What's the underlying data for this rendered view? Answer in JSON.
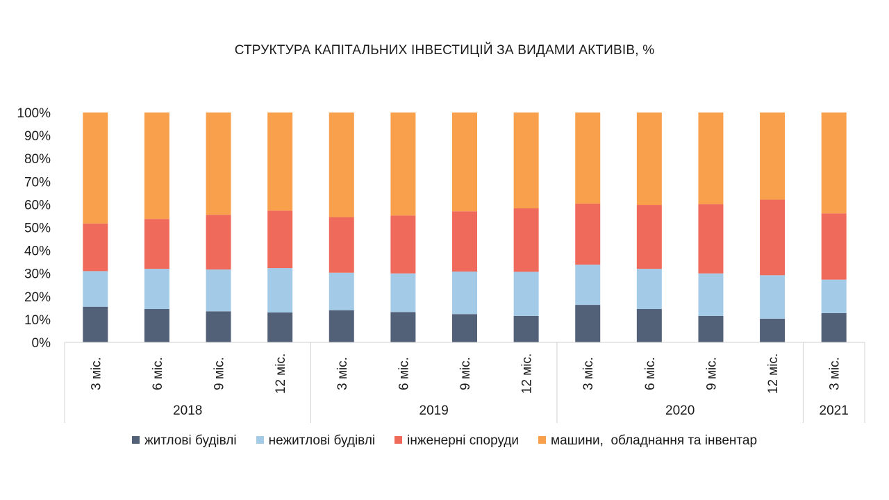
{
  "chart_data": {
    "type": "bar",
    "stacked": true,
    "percent_stacked": true,
    "title": "СТРУКТУРА КАПІТАЛЬНИХ ІНВЕСТИЦІЙ ЗА ВИДАМИ АКТИВІВ, %",
    "xlabel": "",
    "ylabel": "",
    "ylim": [
      0,
      100
    ],
    "yticks": [
      "0%",
      "10%",
      "20%",
      "30%",
      "40%",
      "50%",
      "60%",
      "70%",
      "80%",
      "90%",
      "100%"
    ],
    "categories": [
      "3 міс.",
      "6 міс.",
      "9 міс.",
      "12 міс.",
      "3 міс.",
      "6 міс.",
      "9 міс.",
      "12 міс.",
      "3 міс.",
      "6 міс.",
      "9 міс.",
      "12 міс.",
      "3 міс."
    ],
    "groups": [
      {
        "label": "2018",
        "count": 4
      },
      {
        "label": "2019",
        "count": 4
      },
      {
        "label": "2020",
        "count": 4
      },
      {
        "label": "2021",
        "count": 1
      }
    ],
    "series": [
      {
        "name": "житлові будівлі",
        "color": "#536178",
        "values": [
          15.5,
          14.5,
          13.5,
          13,
          14,
          13.2,
          12.3,
          11.5,
          16.3,
          14.5,
          11.5,
          10.3,
          12.7
        ]
      },
      {
        "name": "нежитлові будівлі",
        "color": "#a3cbe8",
        "values": [
          15.5,
          17.5,
          18.2,
          19.3,
          16.3,
          16.8,
          18.5,
          19.2,
          17.5,
          17.5,
          18.5,
          18.9,
          14.6
        ]
      },
      {
        "name": "інженерні споруди",
        "color": "#f06a5b",
        "values": [
          20.7,
          21.7,
          23.8,
          25,
          24.2,
          25.2,
          26.2,
          27.6,
          26.5,
          27.8,
          30.1,
          32.9,
          28.8
        ]
      },
      {
        "name": "машини,  обладнання та інвентар",
        "color": "#f8a04c",
        "values": [
          48.3,
          46.3,
          44.5,
          42.7,
          45.5,
          44.8,
          43,
          41.7,
          39.7,
          40.2,
          39.9,
          37.9,
          43.9
        ]
      }
    ],
    "legend": "bottom",
    "grid": false
  }
}
